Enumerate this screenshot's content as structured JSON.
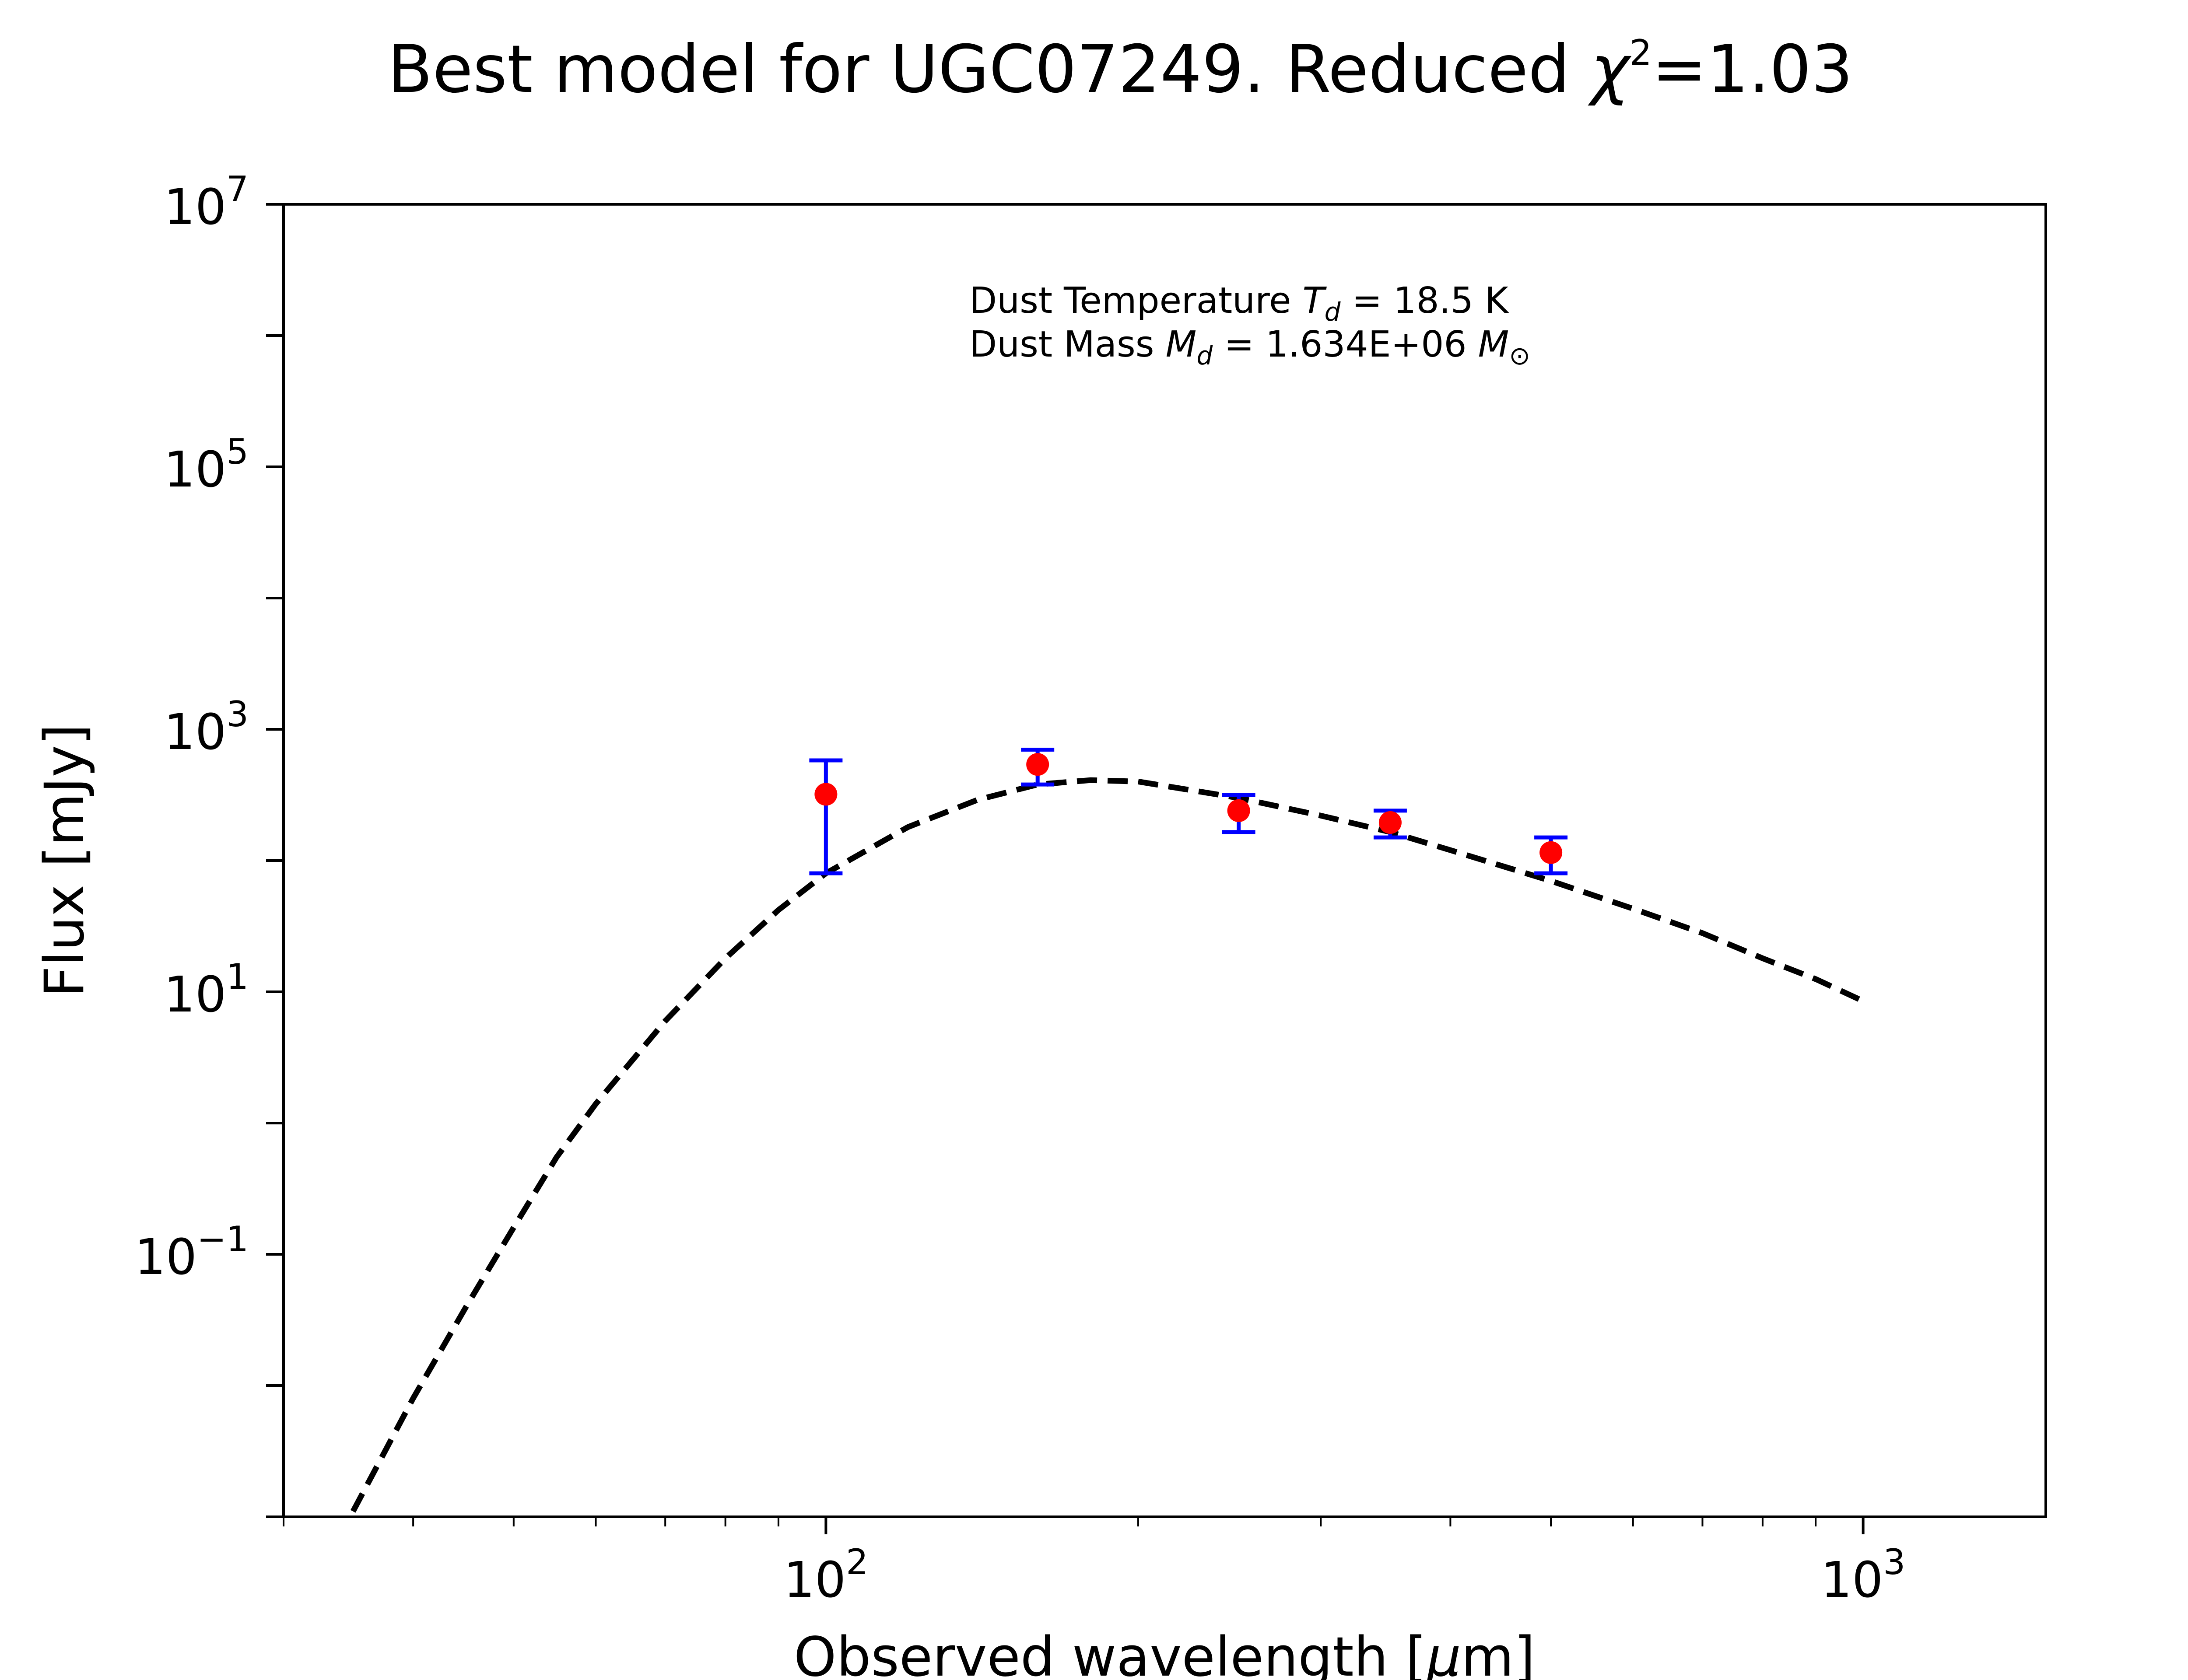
{
  "chart_data": {
    "type": "scatter",
    "title": {
      "main": "Best model for UGC07249. Reduced ",
      "chi": "χ",
      "sup": "2",
      "value": "=1.03"
    },
    "xlabel": {
      "main": "Observed wavelength [",
      "mu": "μ",
      "unit": "m]"
    },
    "ylabel": "Flux [mJy]",
    "x_scale": "log",
    "y_scale": "log",
    "xlim": [
      30,
      1500
    ],
    "ylim": [
      0.001,
      10000000
    ],
    "grid": false,
    "x_ticks": [
      {
        "value": 100,
        "base": "10",
        "exp": "2"
      },
      {
        "value": 1000,
        "base": "10",
        "exp": "3"
      }
    ],
    "y_ticks": [
      {
        "value": 10000000,
        "base": "10",
        "exp": "7"
      },
      {
        "value": 100000,
        "base": "10",
        "exp": "5"
      },
      {
        "value": 1000,
        "base": "10",
        "exp": "3"
      },
      {
        "value": 10,
        "base": "10",
        "exp": "1"
      },
      {
        "value": 0.1,
        "base": "10",
        "exp": "−1"
      }
    ],
    "annotations": {
      "line1": {
        "prefix": "Dust Temperature ",
        "sym": "T",
        "sub": "d",
        "value": " = 18.5 K"
      },
      "line2": {
        "prefix": "Dust Mass ",
        "sym": "M",
        "sub": "d",
        "value": " = 1.634E+06 ",
        "unit_sym": "M",
        "unit_sub": "⊙"
      }
    },
    "series": [
      {
        "kind": "observed",
        "marker_color": "#ff0000",
        "errorbar_color": "#0000ff",
        "points": [
          {
            "x": 100,
            "y": 320,
            "ylo": 80,
            "yhi": 580
          },
          {
            "x": 160,
            "y": 540,
            "ylo": 380,
            "yhi": 700
          },
          {
            "x": 250,
            "y": 240,
            "ylo": 165,
            "yhi": 315
          },
          {
            "x": 350,
            "y": 195,
            "ylo": 150,
            "yhi": 240
          },
          {
            "x": 500,
            "y": 115,
            "ylo": 80,
            "yhi": 150
          }
        ]
      },
      {
        "kind": "model",
        "style": "dashed",
        "line_color": "#000000",
        "points": [
          {
            "x": 35,
            "y": 0.0011
          },
          {
            "x": 40,
            "y": 0.008
          },
          {
            "x": 45,
            "y": 0.04
          },
          {
            "x": 50,
            "y": 0.16
          },
          {
            "x": 55,
            "y": 0.55
          },
          {
            "x": 60,
            "y": 1.4
          },
          {
            "x": 70,
            "y": 6
          },
          {
            "x": 80,
            "y": 18
          },
          {
            "x": 90,
            "y": 42
          },
          {
            "x": 100,
            "y": 80
          },
          {
            "x": 120,
            "y": 180
          },
          {
            "x": 140,
            "y": 290
          },
          {
            "x": 160,
            "y": 380
          },
          {
            "x": 180,
            "y": 410
          },
          {
            "x": 200,
            "y": 400
          },
          {
            "x": 250,
            "y": 300
          },
          {
            "x": 300,
            "y": 220
          },
          {
            "x": 350,
            "y": 165
          },
          {
            "x": 400,
            "y": 120
          },
          {
            "x": 500,
            "y": 70
          },
          {
            "x": 600,
            "y": 43
          },
          {
            "x": 700,
            "y": 28
          },
          {
            "x": 800,
            "y": 18
          },
          {
            "x": 900,
            "y": 12.5
          },
          {
            "x": 1000,
            "y": 8.5
          }
        ]
      }
    ]
  }
}
